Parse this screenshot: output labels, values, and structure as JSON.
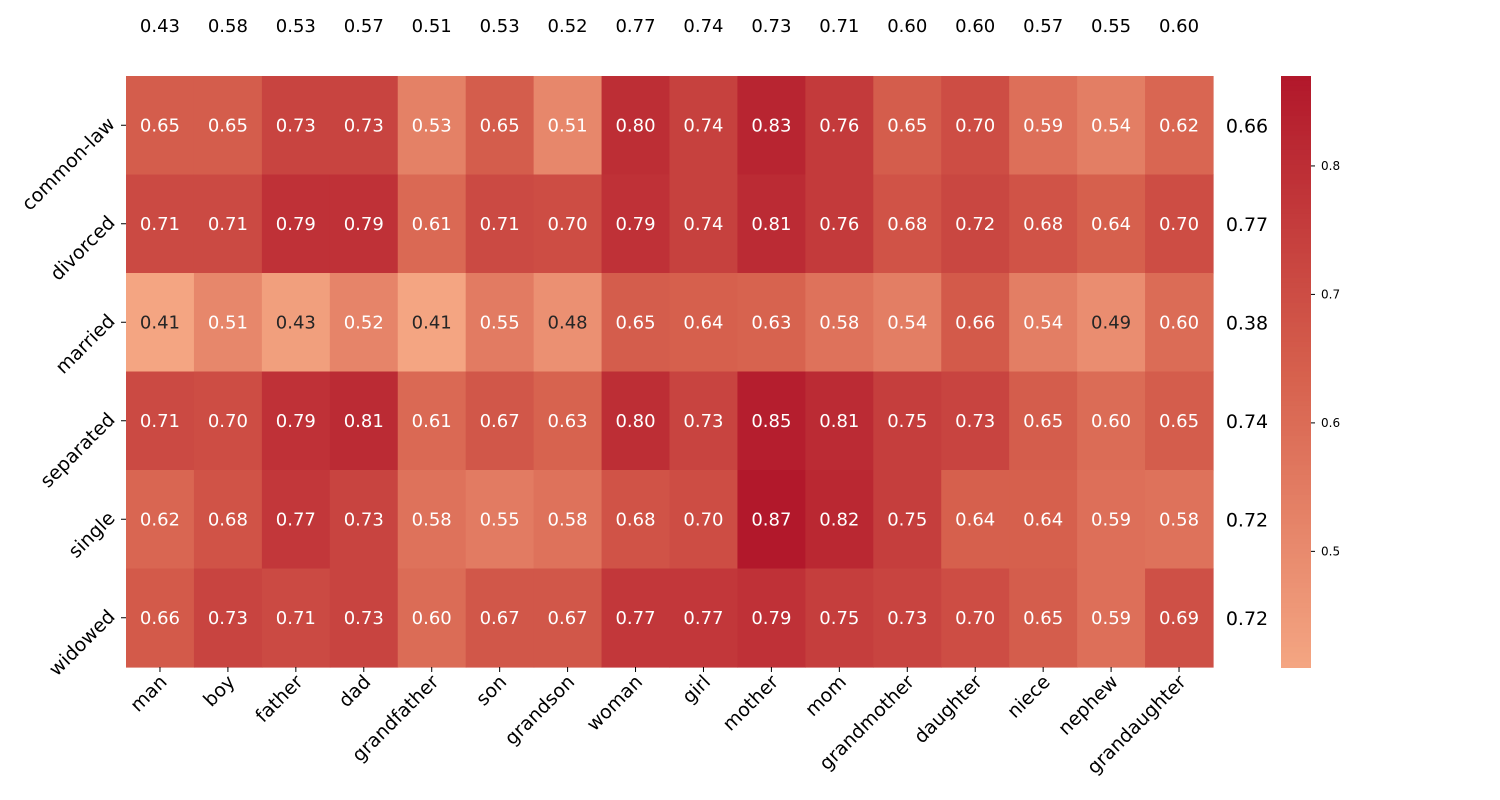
{
  "chart_data": {
    "type": "heatmap",
    "title": "",
    "xlabel": "",
    "ylabel": "",
    "columns": [
      "man",
      "boy",
      "father",
      "dad",
      "grandfather",
      "son",
      "grandson",
      "woman",
      "girl",
      "mother",
      "mom",
      "grandmother",
      "daughter",
      "niece",
      "nephew",
      "grandaughter"
    ],
    "rows": [
      "common-law",
      "divorced",
      "married",
      "separated",
      "single",
      "widowed"
    ],
    "values": [
      [
        0.65,
        0.65,
        0.73,
        0.73,
        0.53,
        0.65,
        0.51,
        0.8,
        0.74,
        0.83,
        0.76,
        0.65,
        0.7,
        0.59,
        0.54,
        0.62
      ],
      [
        0.71,
        0.71,
        0.79,
        0.79,
        0.61,
        0.71,
        0.7,
        0.79,
        0.74,
        0.81,
        0.76,
        0.68,
        0.72,
        0.68,
        0.64,
        0.7
      ],
      [
        0.41,
        0.51,
        0.43,
        0.52,
        0.41,
        0.55,
        0.48,
        0.65,
        0.64,
        0.63,
        0.58,
        0.54,
        0.66,
        0.54,
        0.49,
        0.6
      ],
      [
        0.71,
        0.7,
        0.79,
        0.81,
        0.61,
        0.67,
        0.63,
        0.8,
        0.73,
        0.85,
        0.81,
        0.75,
        0.73,
        0.65,
        0.6,
        0.65
      ],
      [
        0.62,
        0.68,
        0.77,
        0.73,
        0.58,
        0.55,
        0.58,
        0.68,
        0.7,
        0.87,
        0.82,
        0.75,
        0.64,
        0.64,
        0.59,
        0.58
      ],
      [
        0.66,
        0.73,
        0.71,
        0.73,
        0.6,
        0.67,
        0.67,
        0.77,
        0.77,
        0.79,
        0.75,
        0.73,
        0.7,
        0.65,
        0.59,
        0.69
      ]
    ],
    "column_summary": [
      0.43,
      0.58,
      0.53,
      0.57,
      0.51,
      0.53,
      0.52,
      0.77,
      0.74,
      0.73,
      0.71,
      0.6,
      0.6,
      0.57,
      0.55,
      0.6
    ],
    "row_summary": [
      0.66,
      0.77,
      0.38,
      0.74,
      0.72,
      0.72
    ],
    "color_range": [
      0.41,
      0.87
    ],
    "colormap": {
      "low": "#f4a582",
      "mid": "#d6604d",
      "high": "#b2182b"
    },
    "colorbar_ticks": [
      "0.5",
      "0.6",
      "0.7",
      "0.8"
    ],
    "colorbar_tick_values": [
      0.5,
      0.6,
      0.7,
      0.8
    ],
    "legend_position": "right"
  }
}
